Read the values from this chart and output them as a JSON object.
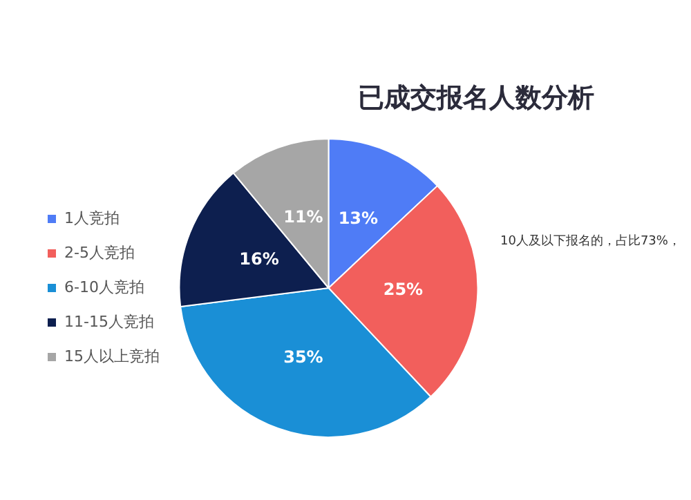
{
  "chart_data": {
    "type": "pie",
    "title": "已成交报名人数分析",
    "categories": [
      "1人竞拍",
      "2-5人竞拍",
      "6-10人竞拍",
      "11-15人竞拍",
      "15人以上竞拍"
    ],
    "values": [
      13,
      25,
      35,
      16,
      11
    ],
    "colors": [
      "#4f7cf6",
      "#f25f5c",
      "#1a8fd6",
      "#0d1f4f",
      "#a6a6a6"
    ],
    "value_labels": [
      "13%",
      "25%",
      "35%",
      "16%",
      "11%"
    ],
    "legend": "left",
    "annotations": [
      "10人及以下报名的，占比73%，"
    ]
  }
}
